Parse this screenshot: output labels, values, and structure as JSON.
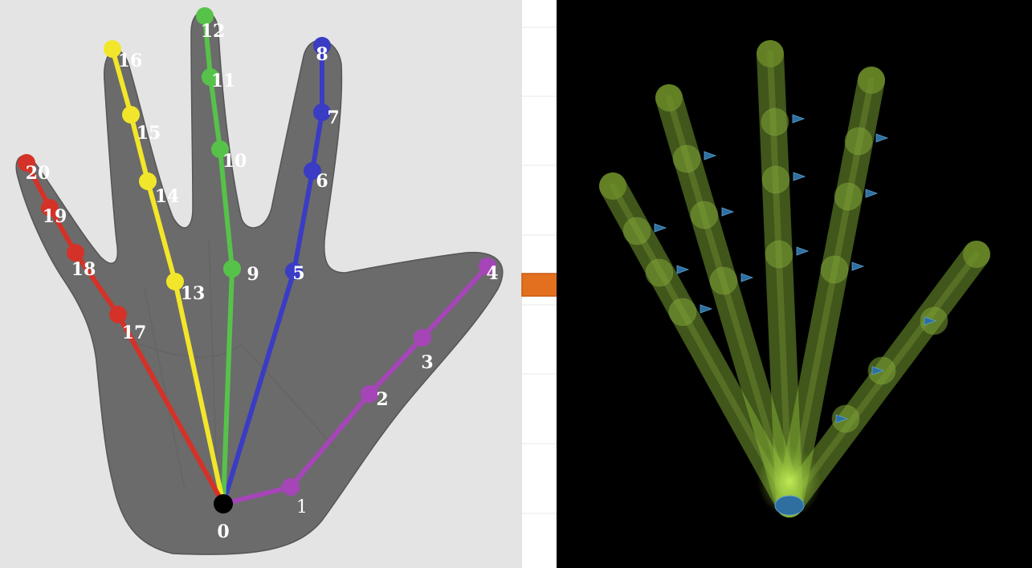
{
  "left_panel": {
    "keypoints": [
      {
        "id": 0,
        "label": "0",
        "group": "wrist"
      },
      {
        "id": 1,
        "label": "1",
        "group": "thumb"
      },
      {
        "id": 2,
        "label": "2",
        "group": "thumb"
      },
      {
        "id": 3,
        "label": "3",
        "group": "thumb"
      },
      {
        "id": 4,
        "label": "4",
        "group": "thumb"
      },
      {
        "id": 5,
        "label": "5",
        "group": "index"
      },
      {
        "id": 6,
        "label": "6",
        "group": "index"
      },
      {
        "id": 7,
        "label": "7",
        "group": "index"
      },
      {
        "id": 8,
        "label": "8",
        "group": "index"
      },
      {
        "id": 9,
        "label": "9",
        "group": "middle"
      },
      {
        "id": 10,
        "label": "10",
        "group": "middle"
      },
      {
        "id": 11,
        "label": "11",
        "group": "middle"
      },
      {
        "id": 12,
        "label": "12",
        "group": "middle"
      },
      {
        "id": 13,
        "label": "13",
        "group": "ring"
      },
      {
        "id": 14,
        "label": "14",
        "group": "ring"
      },
      {
        "id": 15,
        "label": "15",
        "group": "ring"
      },
      {
        "id": 16,
        "label": "16",
        "group": "ring"
      },
      {
        "id": 17,
        "label": "17",
        "group": "pinky"
      },
      {
        "id": 18,
        "label": "18",
        "group": "pinky"
      },
      {
        "id": 19,
        "label": "19",
        "group": "pinky"
      },
      {
        "id": 20,
        "label": "20",
        "group": "pinky"
      }
    ],
    "colors": {
      "wrist": "#000000",
      "thumb": "#a645b8",
      "index": "#3b3cc4",
      "middle": "#57c24a",
      "ring": "#f2e62a",
      "pinky": "#d43228",
      "hand": "#6b6b6b",
      "background": "#e4e4e4"
    }
  },
  "arrow": {
    "color": "#e3701f",
    "icon": "right-arrow-icon"
  },
  "right_panel": {
    "background": "#000000",
    "bone_color": "#8fbf3a",
    "joint_marker_color": "#2f6f9f",
    "fingers": [
      "thumb",
      "index",
      "middle",
      "ring",
      "pinky"
    ]
  }
}
